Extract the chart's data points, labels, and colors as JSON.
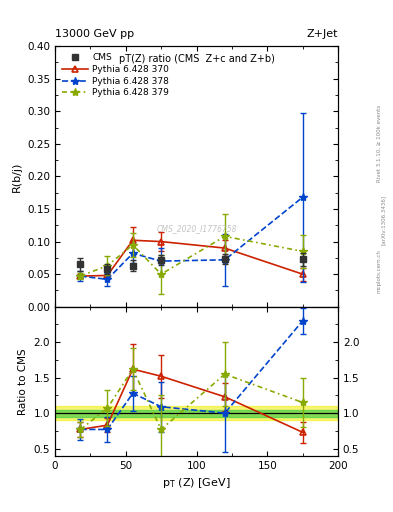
{
  "title_top": "13000 GeV pp",
  "title_right": "Z+Jet",
  "main_title": "pT(Z) ratio (CMS  Z+c and Z+b)",
  "ylabel_main": "R(b/j)",
  "ylabel_ratio": "Ratio to CMS",
  "xlabel": "p_{T} (Z) [GeV]",
  "watermark": "CMS_2020_I1776758",
  "right_label": "Rivet 3.1.10, ≥ 100k events",
  "right_label2": "[arXiv:1306.3436]",
  "right_label3": "mcplots.cern.ch",
  "cms_x": [
    18,
    37,
    55,
    75,
    120,
    175
  ],
  "cms_y": [
    0.065,
    0.058,
    0.063,
    0.072,
    0.073,
    0.073
  ],
  "cms_yerr": [
    0.01,
    0.008,
    0.008,
    0.008,
    0.008,
    0.01
  ],
  "p370_x": [
    18,
    37,
    55,
    75,
    120,
    175
  ],
  "p370_y": [
    0.047,
    0.048,
    0.102,
    0.1,
    0.09,
    0.05
  ],
  "p370_yerr": [
    0.003,
    0.003,
    0.02,
    0.015,
    0.012,
    0.01
  ],
  "p378_x": [
    18,
    37,
    55,
    75,
    120,
    175
  ],
  "p378_y": [
    0.047,
    0.042,
    0.082,
    0.07,
    0.072,
    0.168
  ],
  "p378_yerr": [
    0.008,
    0.01,
    0.015,
    0.02,
    0.04,
    0.13
  ],
  "p379_x": [
    18,
    37,
    55,
    75,
    120,
    175
  ],
  "p379_y": [
    0.047,
    0.063,
    0.095,
    0.05,
    0.108,
    0.085
  ],
  "p379_yerr": [
    0.005,
    0.015,
    0.018,
    0.03,
    0.035,
    0.025
  ],
  "ratio_p370_y": [
    0.77,
    0.83,
    1.62,
    1.52,
    1.23,
    0.73
  ],
  "ratio_p370_yerr": [
    0.1,
    0.1,
    0.35,
    0.3,
    0.2,
    0.15
  ],
  "ratio_p378_y": [
    0.77,
    0.77,
    1.28,
    1.09,
    1.0,
    2.3
  ],
  "ratio_p378_yerr": [
    0.15,
    0.18,
    0.25,
    0.35,
    0.55,
    0.18
  ],
  "ratio_p379_y": [
    0.77,
    1.07,
    1.62,
    0.77,
    1.55,
    1.15
  ],
  "ratio_p379_yerr": [
    0.1,
    0.25,
    0.3,
    0.48,
    0.45,
    0.35
  ],
  "cms_band_inner": 0.05,
  "cms_band_outer": 0.1,
  "color_cms": "#333333",
  "color_p370": "#cc2200",
  "color_p378": "#0044cc",
  "color_p379": "#88aa00",
  "ylim_main": [
    0.0,
    0.4
  ],
  "ylim_ratio": [
    0.4,
    2.5
  ],
  "xlim": [
    0,
    200
  ]
}
